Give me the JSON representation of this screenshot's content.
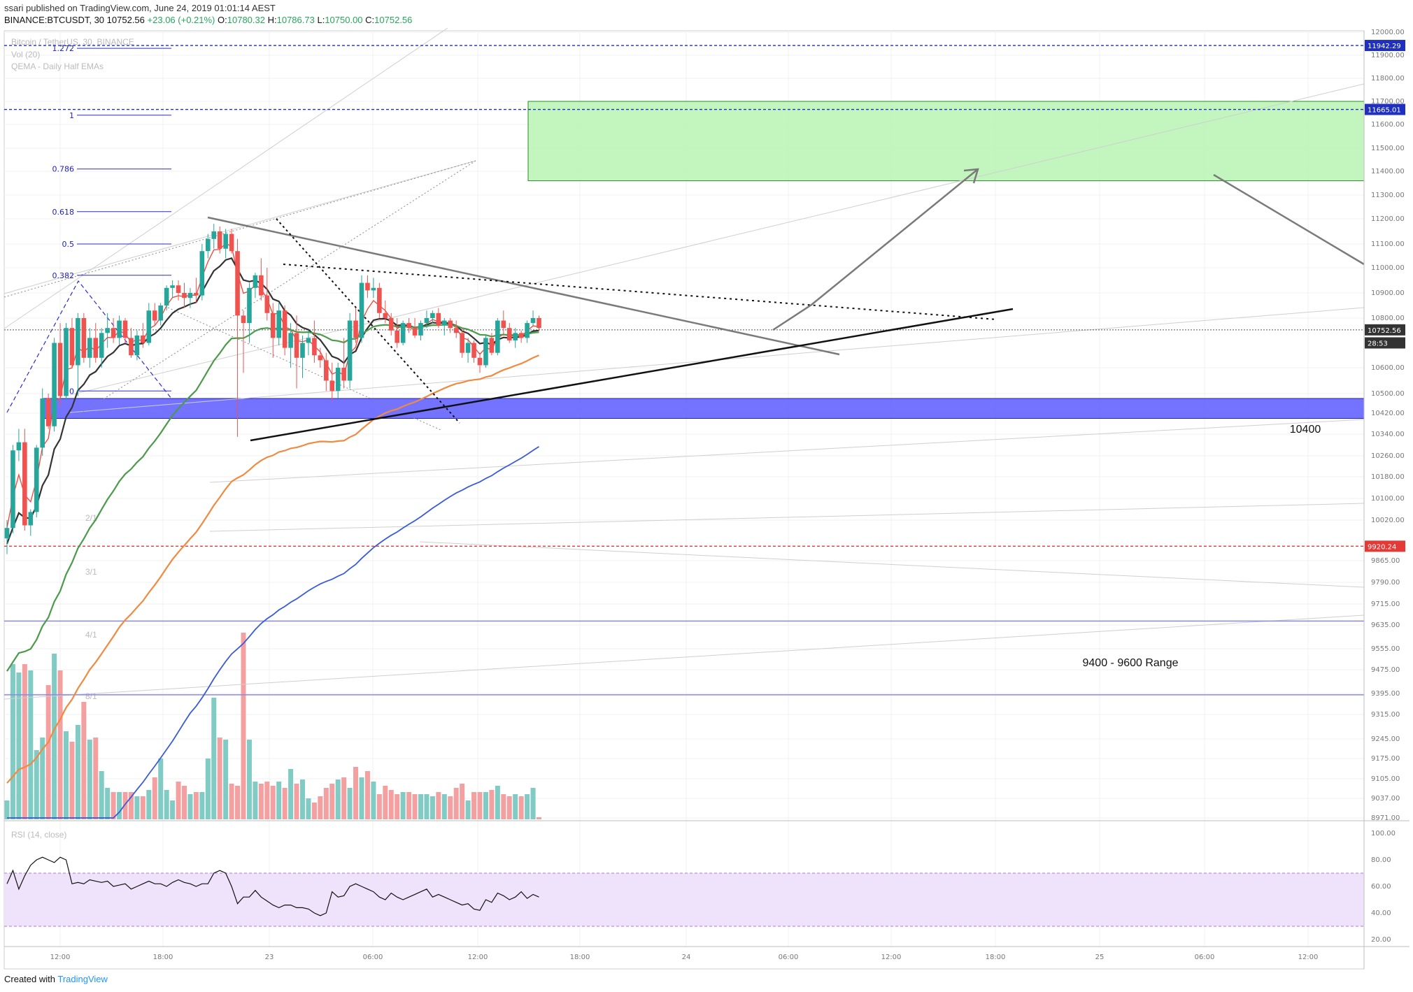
{
  "header": {
    "line1": "ssari published on TradingView.com, June 24, 2019 01:01:14 AEST",
    "user": "ssari",
    "symbol": "BINANCE:BTCUSDT, 30",
    "price": "10752.56",
    "change": "+23.06 (+0.21%)",
    "ohlc": {
      "o_label": "O:",
      "o": "10780.32",
      "h_label": "H:",
      "h": "10786.73",
      "l_label": "L:",
      "l": "10750.00",
      "c_label": "C:",
      "c": "10752.56"
    }
  },
  "watermark": {
    "symbol": "Bitcoin / TetherUS, 30, BINANCE",
    "vol": "Vol (20)",
    "ema": "QEMA - Daily Half EMAs",
    "rsi": "RSI (14, close)"
  },
  "footer": {
    "created_with": "Created with",
    "brand": "TradingView"
  },
  "colors": {
    "up": "#26a69a",
    "down": "#ef5350",
    "zone_green": "#b9f5b4",
    "zone_blue": "#5b5bff",
    "ema_red": "#f44336",
    "ema_black": "#333333",
    "ema_green": "#4c9a4c",
    "ema_orange": "#f08a40",
    "ema_blue": "#3a5bd9",
    "rsi_band": "#efe3fb"
  },
  "chart_data": {
    "type": "candlestick",
    "symbol": "BINANCE:BTCUSDT",
    "timeframe": "30",
    "y_axis_labels": [
      "12000.00",
      "11900.00",
      "11800.00",
      "11700.00",
      "11600.00",
      "11500.00",
      "11400.00",
      "11300.00",
      "11200.00",
      "11100.00",
      "11000.00",
      "10900.00",
      "10800.00",
      "10600.00",
      "10500.00",
      "10420.00",
      "10340.00",
      "10260.00",
      "10180.00",
      "10100.00",
      "10020.00",
      "9865.00",
      "9790.00",
      "9715.00",
      "9635.00",
      "9555.00",
      "9475.00",
      "9395.00",
      "9315.00",
      "9245.00",
      "9175.00",
      "9105.00",
      "9037.00",
      "8971.00"
    ],
    "x_axis_labels": [
      "12:00",
      "18:00",
      "23",
      "06:00",
      "12:00",
      "18:00",
      "24",
      "06:00",
      "12:00",
      "18:00",
      "25",
      "06:00",
      "12:00"
    ],
    "price_tags": [
      {
        "value": "11942.29",
        "price": 11942.29,
        "color": "#1f2fbf"
      },
      {
        "value": "11665.01",
        "price": 11665.01,
        "color": "#1f2fbf"
      },
      {
        "value": "10752.56",
        "price": 10752.56,
        "color": "#333333"
      },
      {
        "value": "28:53",
        "price": 10700,
        "color": "#333333"
      },
      {
        "value": "9920.24",
        "price": 9920.24,
        "color": "#e53935"
      }
    ],
    "fib_levels": [
      {
        "label": "1.272",
        "price": 11930
      },
      {
        "label": "1",
        "price": 11640
      },
      {
        "label": "0.786",
        "price": 11410
      },
      {
        "label": "0.618",
        "price": 11230
      },
      {
        "label": "0.5",
        "price": 11100
      },
      {
        "label": "0.382",
        "price": 10970
      },
      {
        "label": "0",
        "price": 10510
      }
    ],
    "gann_labels": [
      "2/1",
      "3/1",
      "4/1",
      "8/1"
    ],
    "zones": [
      {
        "name": "target",
        "from": 11360,
        "to": 11700
      },
      {
        "name": "support",
        "from": 10400,
        "to": 10480
      }
    ],
    "annotations": [
      "10400",
      "9400 - 9600 Range"
    ],
    "horizontal_lines": [
      9920.24,
      9650,
      9390
    ],
    "ohlc": [
      [
        9950,
        10020,
        9890,
        9990
      ],
      [
        9990,
        10300,
        9970,
        10280
      ],
      [
        10280,
        10360,
        10240,
        10310
      ],
      [
        10310,
        10360,
        9980,
        10000
      ],
      [
        10000,
        10060,
        9960,
        10050
      ],
      [
        10050,
        10300,
        10030,
        10290
      ],
      [
        10290,
        10520,
        10260,
        10480
      ],
      [
        10480,
        10500,
        10360,
        10370
      ],
      [
        10370,
        10720,
        10350,
        10700
      ],
      [
        10700,
        10780,
        10450,
        10490
      ],
      [
        10490,
        10780,
        10470,
        10760
      ],
      [
        10760,
        10800,
        10600,
        10610
      ],
      [
        10610,
        10820,
        10490,
        10800
      ],
      [
        10800,
        10820,
        10620,
        10640
      ],
      [
        10640,
        10760,
        10600,
        10720
      ],
      [
        10720,
        10780,
        10620,
        10640
      ],
      [
        10640,
        10760,
        10600,
        10740
      ],
      [
        10740,
        10820,
        10680,
        10760
      ],
      [
        10760,
        10800,
        10700,
        10720
      ],
      [
        10720,
        10810,
        10690,
        10790
      ],
      [
        10790,
        10800,
        10700,
        10720
      ],
      [
        10720,
        10760,
        10640,
        10650
      ],
      [
        10650,
        10750,
        10630,
        10730
      ],
      [
        10730,
        10780,
        10680,
        10700
      ],
      [
        10700,
        10860,
        10690,
        10830
      ],
      [
        10830,
        10860,
        10770,
        10790
      ],
      [
        10790,
        10860,
        10770,
        10850
      ],
      [
        10850,
        10930,
        10830,
        10920
      ],
      [
        10920,
        10950,
        10880,
        10930
      ],
      [
        10930,
        10950,
        10870,
        10900
      ],
      [
        10900,
        10940,
        10840,
        10880
      ],
      [
        10880,
        10920,
        10840,
        10900
      ],
      [
        10900,
        10960,
        10860,
        10890
      ],
      [
        10890,
        11100,
        10870,
        11070
      ],
      [
        11070,
        11140,
        11040,
        11120
      ],
      [
        11120,
        11180,
        11080,
        11150
      ],
      [
        11150,
        11170,
        11060,
        11080
      ],
      [
        11080,
        11160,
        11040,
        11140
      ],
      [
        11140,
        11160,
        11060,
        11070
      ],
      [
        11070,
        11120,
        10330,
        10810
      ],
      [
        10810,
        10830,
        10580,
        10780
      ],
      [
        10780,
        10940,
        10700,
        10920
      ],
      [
        10920,
        10980,
        10880,
        10970
      ],
      [
        10970,
        11040,
        10870,
        10890
      ],
      [
        10890,
        11000,
        10790,
        10820
      ],
      [
        10820,
        10860,
        10640,
        10720
      ],
      [
        10720,
        10860,
        10690,
        10830
      ],
      [
        10830,
        10850,
        10650,
        10680
      ],
      [
        10680,
        10780,
        10600,
        10740
      ],
      [
        10740,
        10810,
        10520,
        10640
      ],
      [
        10640,
        10730,
        10560,
        10700
      ],
      [
        10700,
        10750,
        10650,
        10720
      ],
      [
        10720,
        10790,
        10620,
        10650
      ],
      [
        10650,
        10680,
        10600,
        10630
      ],
      [
        10630,
        10660,
        10510,
        10550
      ],
      [
        10550,
        10620,
        10470,
        10510
      ],
      [
        10510,
        10620,
        10480,
        10600
      ],
      [
        10600,
        10720,
        10520,
        10550
      ],
      [
        10550,
        10820,
        10520,
        10790
      ],
      [
        10790,
        10840,
        10700,
        10720
      ],
      [
        10720,
        10970,
        10700,
        10940
      ],
      [
        10940,
        10970,
        10880,
        10910
      ],
      [
        10910,
        10960,
        10880,
        10920
      ],
      [
        10920,
        10940,
        10800,
        10820
      ],
      [
        10820,
        10870,
        10780,
        10800
      ],
      [
        10800,
        10820,
        10730,
        10750
      ],
      [
        10750,
        10800,
        10680,
        10700
      ],
      [
        10700,
        10790,
        10690,
        10780
      ],
      [
        10780,
        10800,
        10740,
        10760
      ],
      [
        10760,
        10800,
        10720,
        10730
      ],
      [
        10730,
        10790,
        10710,
        10780
      ],
      [
        10780,
        10830,
        10760,
        10800
      ],
      [
        10800,
        10830,
        10780,
        10820
      ],
      [
        10820,
        10840,
        10760,
        10770
      ],
      [
        10770,
        10800,
        10730,
        10790
      ],
      [
        10790,
        10800,
        10740,
        10760
      ],
      [
        10760,
        10790,
        10720,
        10740
      ],
      [
        10740,
        10760,
        10640,
        10660
      ],
      [
        10660,
        10720,
        10620,
        10700
      ],
      [
        10700,
        10710,
        10620,
        10640
      ],
      [
        10640,
        10660,
        10580,
        10610
      ],
      [
        10610,
        10730,
        10600,
        10720
      ],
      [
        10720,
        10740,
        10650,
        10660
      ],
      [
        10660,
        10800,
        10650,
        10790
      ],
      [
        10790,
        10830,
        10730,
        10760
      ],
      [
        10760,
        10780,
        10700,
        10710
      ],
      [
        10710,
        10760,
        10680,
        10740
      ],
      [
        10740,
        10750,
        10700,
        10720
      ],
      [
        10720,
        10790,
        10700,
        10780
      ],
      [
        10780,
        10830,
        10770,
        10800
      ],
      [
        10800,
        10810,
        10750,
        10760
      ]
    ],
    "volume": [
      9,
      74,
      70,
      74,
      71,
      33,
      39,
      64,
      79,
      71,
      42,
      37,
      45,
      56,
      38,
      39,
      23,
      15,
      13,
      13,
      13,
      13,
      11,
      11,
      14,
      20,
      29,
      14,
      9,
      18,
      16,
      12,
      13,
      13,
      29,
      58,
      39,
      38,
      17,
      16,
      89,
      38,
      18,
      17,
      18,
      16,
      18,
      15,
      24,
      17,
      19,
      10,
      8,
      11,
      15,
      17,
      19,
      20,
      15,
      25,
      20,
      23,
      18,
      12,
      16,
      14,
      12,
      13,
      13,
      12,
      12,
      12,
      11,
      13,
      12,
      11,
      15,
      17,
      9,
      13,
      13,
      13,
      14,
      16,
      12,
      11,
      12,
      11,
      12,
      15,
      1
    ],
    "rsi": [
      62,
      72,
      58,
      68,
      76,
      80,
      82,
      80,
      78,
      82,
      80,
      62,
      63,
      62,
      65,
      64,
      63,
      64,
      60,
      61,
      62,
      58,
      60,
      62,
      64,
      62,
      62,
      60,
      63,
      65,
      63,
      62,
      60,
      62,
      62,
      70,
      72,
      70,
      60,
      47,
      52,
      52,
      57,
      52,
      49,
      46,
      44,
      46,
      46,
      44,
      44,
      43,
      40,
      38,
      40,
      56,
      52,
      53,
      60,
      62,
      60,
      58,
      56,
      52,
      50,
      55,
      52,
      50,
      52,
      54,
      56,
      58,
      52,
      54,
      52,
      50,
      48,
      46,
      47,
      43,
      42,
      50,
      48,
      55,
      53,
      50,
      52,
      56,
      51,
      54,
      52
    ],
    "rsi_band": [
      30,
      70
    ],
    "rsi_labels": [
      "100.00",
      "80.00",
      "60.00",
      "40.00",
      "20.00"
    ]
  }
}
